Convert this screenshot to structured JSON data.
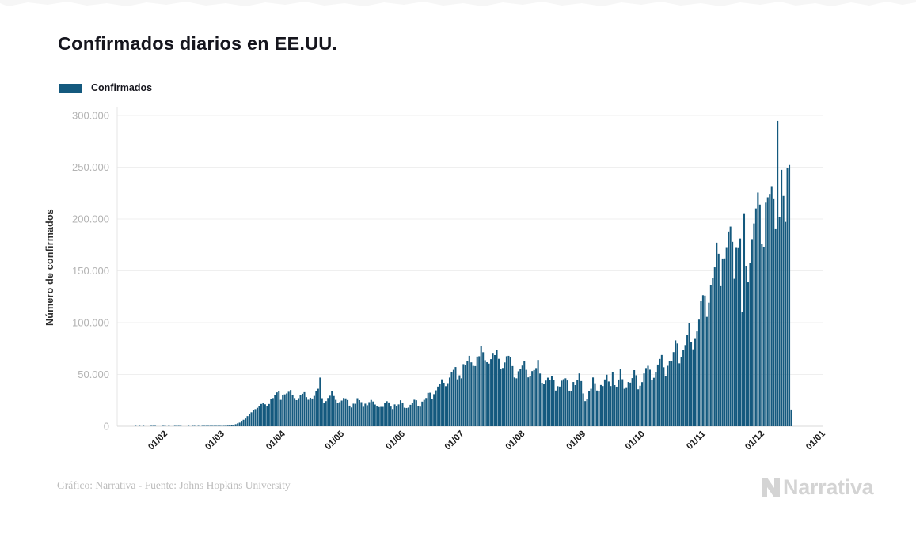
{
  "header": {
    "title": "Confirmados diarios en EE.UU."
  },
  "legend": {
    "label": "Confirmados",
    "swatch_color": "#14597E"
  },
  "footer": {
    "credit": "Gráfico: Narrativa - Fuente: Johns Hopkins University",
    "brand": "Narrativa"
  },
  "colors": {
    "bar": "#14597E",
    "grid": "#efefef",
    "axis": "#d9d9d9",
    "y_tick_text": "#b3b3b3",
    "x_tick_text": "#1e1e1e",
    "title_text": "#15151d",
    "footer_text": "#bcbcbc",
    "brand_text": "#d4d4d4"
  },
  "chart_data": {
    "type": "bar",
    "title": "Confirmados diarios en EE.UU.",
    "series_name": "Confirmados",
    "xlabel": "",
    "ylabel": "Número de confirmados",
    "ylim": [
      0,
      300000
    ],
    "grid": true,
    "legend_position": "top-left",
    "bar_color": "#14597E",
    "start_date": "22/01/2020",
    "y_ticks": [
      {
        "value": 0,
        "label": "0"
      },
      {
        "value": 50000,
        "label": "50.000"
      },
      {
        "value": 100000,
        "label": "100.000"
      },
      {
        "value": 150000,
        "label": "150.000"
      },
      {
        "value": 200000,
        "label": "200.000"
      },
      {
        "value": 250000,
        "label": "250.000"
      },
      {
        "value": 300000,
        "label": "300.000"
      }
    ],
    "x_ticks": [
      {
        "label": "01/02",
        "day_index": 10
      },
      {
        "label": "01/03",
        "day_index": 39
      },
      {
        "label": "01/04",
        "day_index": 70
      },
      {
        "label": "01/05",
        "day_index": 100
      },
      {
        "label": "01/06",
        "day_index": 131
      },
      {
        "label": "01/07",
        "day_index": 161
      },
      {
        "label": "01/08",
        "day_index": 192
      },
      {
        "label": "01/09",
        "day_index": 223
      },
      {
        "label": "01/10",
        "day_index": 253
      },
      {
        "label": "01/11",
        "day_index": 284
      },
      {
        "label": "01/12",
        "day_index": 314
      },
      {
        "label": "01/01",
        "day_index": 345
      }
    ],
    "values": [
      1,
      0,
      1,
      0,
      3,
      0,
      0,
      0,
      2,
      1,
      1,
      0,
      0,
      0,
      2,
      1,
      0,
      1,
      0,
      0,
      1,
      1,
      1,
      2,
      0,
      0,
      0,
      1,
      0,
      1,
      2,
      0,
      3,
      0,
      1,
      4,
      2,
      6,
      8,
      24,
      20,
      80,
      130,
      160,
      280,
      340,
      520,
      580,
      860,
      1100,
      1300,
      2000,
      2800,
      3500,
      4500,
      6300,
      7500,
      9800,
      12000,
      13500,
      15400,
      16500,
      17800,
      19500,
      21500,
      22800,
      21200,
      19700,
      21500,
      26300,
      27200,
      30000,
      32700,
      34200,
      25500,
      30500,
      30800,
      31700,
      33300,
      35000,
      29900,
      27200,
      25200,
      27100,
      30200,
      31400,
      32900,
      28100,
      25600,
      27500,
      26800,
      29300,
      34300,
      36200,
      47000,
      27100,
      22500,
      24300,
      27300,
      29500,
      34000,
      29200,
      25500,
      22300,
      23300,
      24800,
      27300,
      26900,
      25300,
      19900,
      18100,
      21800,
      21700,
      27100,
      25200,
      23300,
      18800,
      21800,
      20300,
      23300,
      25400,
      23900,
      21000,
      19800,
      18500,
      18700,
      18700,
      22600,
      24200,
      23000,
      19000,
      16600,
      21100,
      19700,
      21100,
      25100,
      22500,
      17900,
      17600,
      18000,
      20700,
      22800,
      25600,
      25100,
      19500,
      18900,
      23800,
      25500,
      27300,
      32200,
      32400,
      26000,
      31000,
      34700,
      38300,
      40500,
      45300,
      42000,
      38700,
      41600,
      47000,
      52000,
      54500,
      57200,
      45300,
      49200,
      46300,
      60000,
      59400,
      63200,
      68000,
      61700,
      58300,
      58100,
      67300,
      67600,
      77300,
      71500,
      63800,
      61800,
      60500,
      64800,
      70100,
      68700,
      73700,
      65100,
      55300,
      56300,
      61600,
      67600,
      68000,
      67000,
      58100,
      47100,
      46300,
      53100,
      55200,
      58600,
      63200,
      54500,
      47200,
      48700,
      53300,
      54300,
      56200,
      64000,
      50900,
      42000,
      40500,
      44100,
      46900,
      44600,
      48700,
      44300,
      34500,
      38700,
      38300,
      44000,
      45400,
      46300,
      44200,
      34400,
      33700,
      42700,
      39700,
      44400,
      51000,
      43600,
      31700,
      24300,
      26500,
      34300,
      36200,
      47100,
      41500,
      34500,
      34200,
      39800,
      38800,
      45200,
      49800,
      43200,
      38800,
      52200,
      39700,
      38200,
      45100,
      55200,
      45400,
      36200,
      36900,
      42700,
      42100,
      46500,
      54200,
      49300,
      35700,
      39100,
      42600,
      51000,
      56200,
      58400,
      54600,
      44600,
      46800,
      52400,
      59600,
      65000,
      68800,
      57000,
      48200,
      58400,
      62800,
      62600,
      71600,
      82900,
      79900,
      60800,
      66700,
      73700,
      78400,
      88500,
      99300,
      81200,
      74300,
      84300,
      91500,
      102900,
      121300,
      126500,
      126100,
      105600,
      119300,
      136000,
      143200,
      153400,
      177200,
      166500,
      135200,
      161900,
      162000,
      172900,
      187900,
      192700,
      178000,
      142300,
      172900,
      172700,
      181200,
      110600,
      205600,
      154200,
      138900,
      157900,
      180600,
      195700,
      210200,
      225600,
      213900,
      175700,
      173300,
      215800,
      221000,
      224300,
      231700,
      219200,
      190900,
      294700,
      201800,
      247400,
      222300,
      197200,
      249000,
      252100,
      16100
    ]
  }
}
